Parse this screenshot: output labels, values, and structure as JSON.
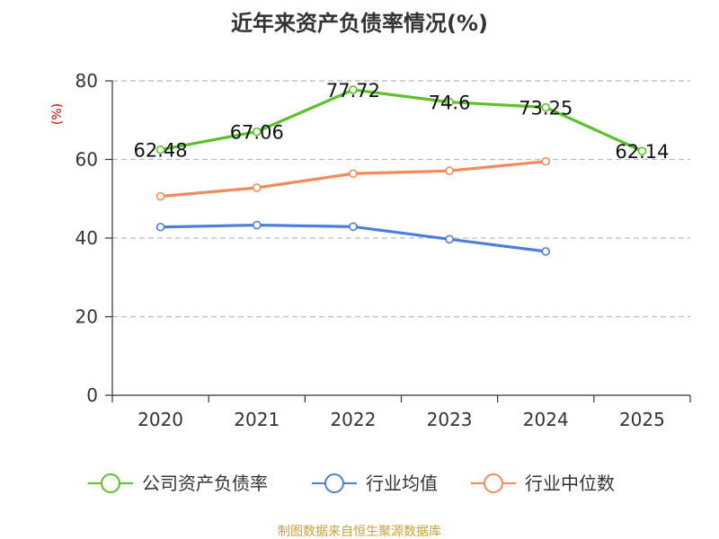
{
  "chart_data": {
    "type": "line",
    "title": "近年来资产负债率情况(%)",
    "ylabel": "(%)",
    "ylim": [
      0,
      80
    ],
    "yticks": [
      0,
      20,
      40,
      60,
      80
    ],
    "grid": true,
    "legend_position": "bottom",
    "categories": [
      "2020",
      "2021",
      "2022",
      "2023",
      "2024",
      "2025"
    ],
    "series": [
      {
        "name": "公司资产负债率",
        "color": "#5cc12a",
        "values": [
          62.48,
          67.06,
          77.72,
          74.6,
          73.25,
          62.14
        ],
        "labels": [
          "62.48",
          "67.06",
          "77.72",
          "74.6",
          "73.25",
          "62.14"
        ]
      },
      {
        "name": "行业均值",
        "color": "#4c7fdc",
        "values": [
          42.8,
          43.3,
          42.9,
          39.7,
          36.6,
          null
        ]
      },
      {
        "name": "行业中位数",
        "color": "#f5895a",
        "values": [
          50.6,
          52.8,
          56.4,
          57.1,
          59.5,
          null
        ]
      }
    ],
    "ylabel_color": "#cc0000"
  },
  "source": {
    "text": "制图数据来自恒生聚源数据库",
    "color": "#c9a13b"
  }
}
